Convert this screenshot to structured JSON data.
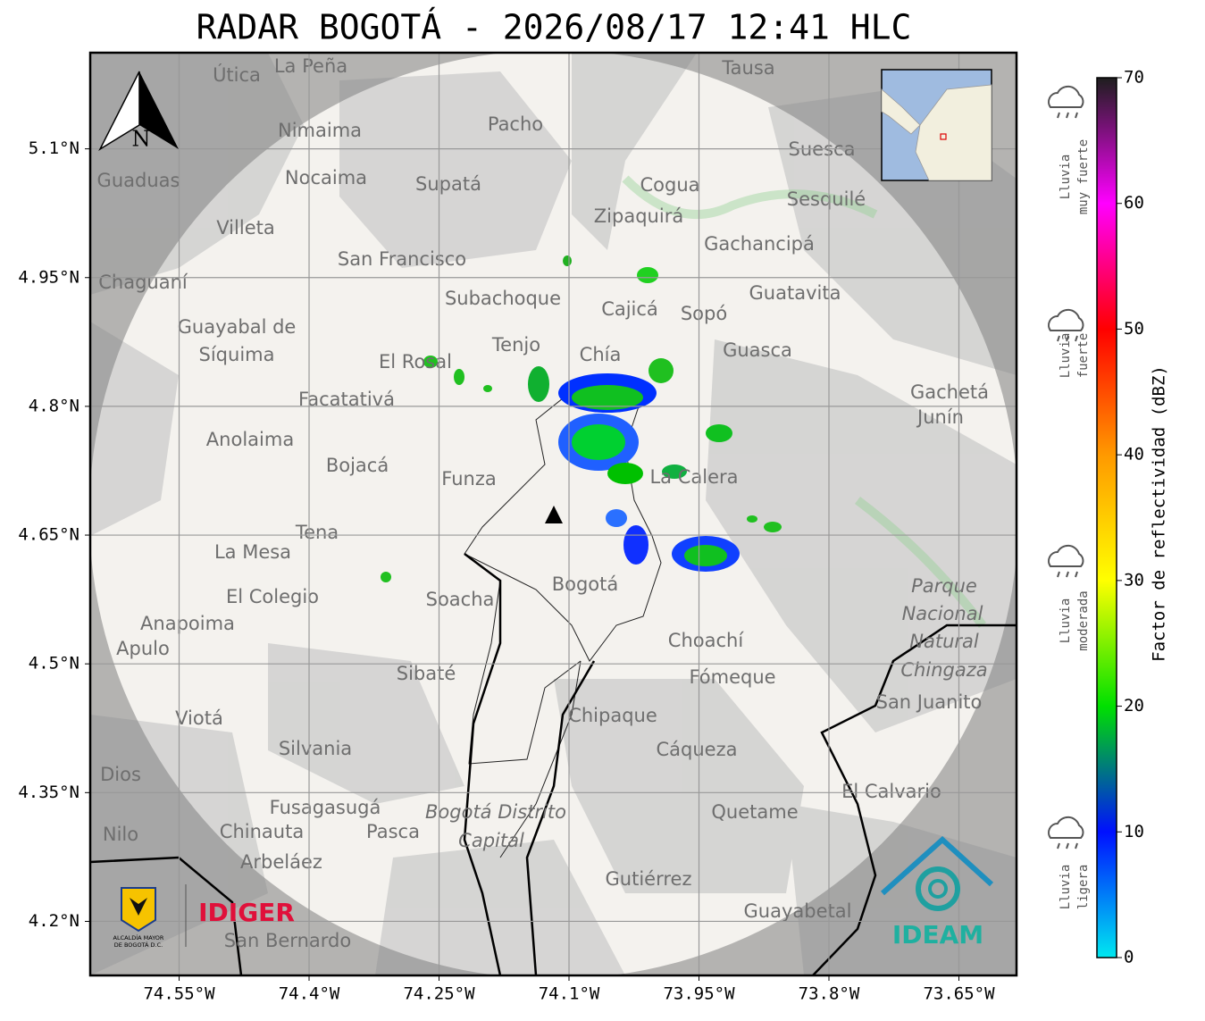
{
  "title": "RADAR BOGOTÁ - 2026/08/17 12:41 HLC",
  "map": {
    "xlim": [
      -74.6526,
      -73.5835
    ],
    "ylim": [
      4.137,
      5.212
    ],
    "xticks": [
      {
        "value": -74.55,
        "label": "74.55°W"
      },
      {
        "value": -74.4,
        "label": "74.4°W"
      },
      {
        "value": -74.25,
        "label": "74.25°W"
      },
      {
        "value": -74.1,
        "label": "74.1°W"
      },
      {
        "value": -73.95,
        "label": "73.95°W"
      },
      {
        "value": -73.8,
        "label": "73.8°W"
      },
      {
        "value": -73.65,
        "label": "73.65°W"
      }
    ],
    "yticks": [
      {
        "value": 5.1,
        "label": "5.1°N"
      },
      {
        "value": 4.95,
        "label": "4.95°N"
      },
      {
        "value": 4.8,
        "label": "4.8°N"
      },
      {
        "value": 4.65,
        "label": "4.65°N"
      },
      {
        "value": 4.5,
        "label": "4.5°N"
      },
      {
        "value": 4.35,
        "label": "4.35°N"
      },
      {
        "value": 4.2,
        "label": "4.2°N"
      }
    ],
    "north_label": "N",
    "places": [
      "La Peña",
      "Útica",
      "Tausa",
      "Pacho",
      "Nimaima",
      "Guaduas",
      "Nocaima",
      "Supatá",
      "Suesca",
      "Cogua",
      "Sesquilé",
      "Zipaquirá",
      "Villeta",
      "San Francisco",
      "Gachancipá",
      "Chaguaní",
      "Subachoque",
      "Guatavita",
      "Cajicá",
      "Sopó",
      "Guayabal de",
      "Síquima",
      "Tenjo",
      "Chía",
      "Guasca",
      "El Rosal",
      "Facatativá",
      "Gachetá",
      "Junín",
      "Anolaima",
      "Bojacá",
      "Funza",
      "La Calera",
      "Tena",
      "La Mesa",
      "Bogotá",
      "Parque",
      "Nacional",
      "Natural",
      "Chingaza",
      "El Colegio",
      "Soacha",
      "Anapoima",
      "Apulo",
      "Choachí",
      "Sibaté",
      "Fómeque",
      "San Juanito",
      "Viotá",
      "Chipaque",
      "Silvania",
      "Cáqueza",
      "Dios",
      "El Calvario",
      "Fusagasugá",
      "Bogotá Distrito",
      "Capital",
      "Quetame",
      "Nilo",
      "Chinauta",
      "Pasca",
      "Arbeláez",
      "Gutiérrez",
      "Guayabetal",
      "San Bernardo"
    ]
  },
  "colorbar": {
    "label": "Factor de reflectividad (dBZ)",
    "lim": [
      0,
      70
    ],
    "ticks": [
      0,
      10,
      20,
      30,
      40,
      50,
      60,
      70
    ],
    "colors": [
      "#00e8f0",
      "#0010ff",
      "#00e000",
      "#ffff00",
      "#ff9900",
      "#ff0000",
      "#ff00ff",
      "#1e1e1e"
    ]
  },
  "rain_levels": [
    [
      "Lluvia",
      "muy fuerte"
    ],
    [
      "Lluvia",
      "fuerte"
    ],
    [
      "Lluvia",
      "moderada"
    ],
    [
      "Lluvia",
      "ligera"
    ]
  ],
  "logos": {
    "alcaldia": [
      "ALCALDÍA MAYOR",
      "DE BOGOTÁ D.C."
    ],
    "idiger": "IDIGER",
    "ideam": "IDEAM"
  }
}
